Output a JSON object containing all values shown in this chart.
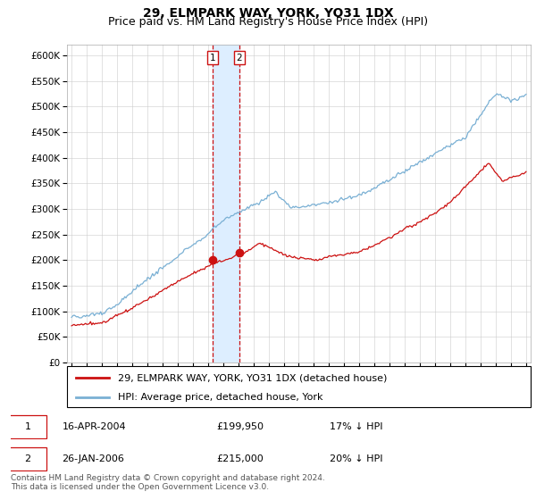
{
  "title": "29, ELMPARK WAY, YORK, YO31 1DX",
  "subtitle": "Price paid vs. HM Land Registry's House Price Index (HPI)",
  "ylim": [
    0,
    620000
  ],
  "yticks": [
    0,
    50000,
    100000,
    150000,
    200000,
    250000,
    300000,
    350000,
    400000,
    450000,
    500000,
    550000,
    600000
  ],
  "xlim_start": 1994.7,
  "xlim_end": 2025.3,
  "sale1_year": 2004.29,
  "sale1_price": 199950,
  "sale2_year": 2006.07,
  "sale2_price": 215000,
  "hpi_color": "#7ab0d4",
  "price_color": "#cc1111",
  "vline_color": "#cc1111",
  "shading_color": "#ddeeff",
  "legend_entry1": "29, ELMPARK WAY, YORK, YO31 1DX (detached house)",
  "legend_entry2": "HPI: Average price, detached house, York",
  "table_row1_date": "16-APR-2004",
  "table_row1_price": "£199,950",
  "table_row1_hpi": "17% ↓ HPI",
  "table_row2_date": "26-JAN-2006",
  "table_row2_price": "£215,000",
  "table_row2_hpi": "20% ↓ HPI",
  "footer": "Contains HM Land Registry data © Crown copyright and database right 2024.\nThis data is licensed under the Open Government Licence v3.0.",
  "title_fontsize": 10,
  "subtitle_fontsize": 9,
  "tick_fontsize": 7.5,
  "legend_fontsize": 8,
  "table_fontsize": 8,
  "footer_fontsize": 6.5
}
